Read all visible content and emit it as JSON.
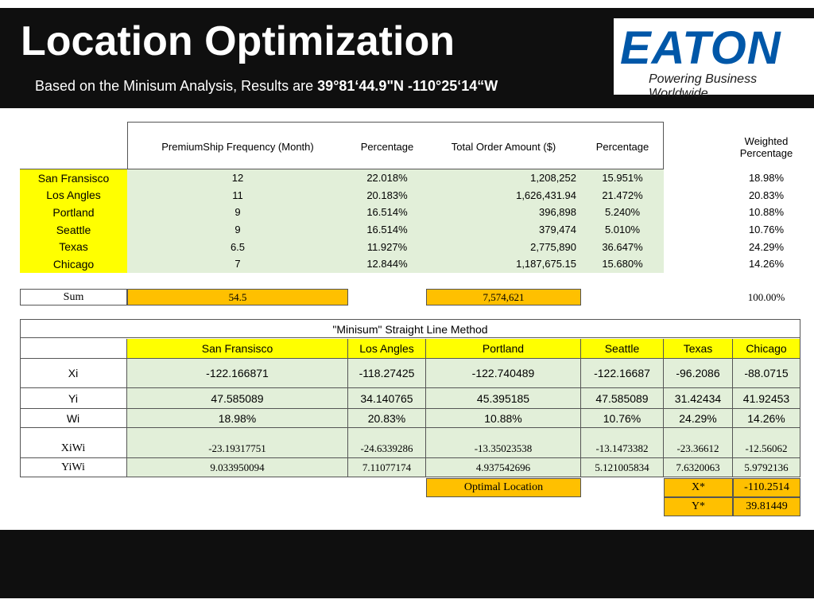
{
  "header": {
    "title": "Location Optimization",
    "subtitle_prefix": "Based on the Minisum Analysis, Results are ",
    "subtitle_coords": "39°81‘44.9\"N -110°25‘14“W"
  },
  "logo": {
    "wordmark": "EATON",
    "tagline": "Powering Business Worldwide"
  },
  "colors": {
    "highlight_yellow": "#ffff00",
    "highlight_orange": "#ffc000",
    "cell_green": "#e2efd9",
    "bar_black": "#0f0f0f",
    "brand_blue": "#0057a8"
  },
  "table1": {
    "headers": [
      "PremiumShip Frequency (Month)",
      "Percentage",
      "Total Order Amount ($)",
      "Percentage",
      "Weighted Percentage"
    ],
    "rows": [
      {
        "city": "San Fransisco",
        "freq": "12",
        "pct1": "22.018%",
        "amount": "1,208,252",
        "pct2": "15.951%",
        "weighted": "18.98%"
      },
      {
        "city": "Los Angles",
        "freq": "11",
        "pct1": "20.183%",
        "amount": "1,626,431.94",
        "pct2": "21.472%",
        "weighted": "20.83%"
      },
      {
        "city": "Portland",
        "freq": "9",
        "pct1": "16.514%",
        "amount": "396,898",
        "pct2": "5.240%",
        "weighted": "10.88%"
      },
      {
        "city": "Seattle",
        "freq": "9",
        "pct1": "16.514%",
        "amount": "379,474",
        "pct2": "5.010%",
        "weighted": "10.76%"
      },
      {
        "city": "Texas",
        "freq": "6.5",
        "pct1": "11.927%",
        "amount": "2,775,890",
        "pct2": "36.647%",
        "weighted": "24.29%"
      },
      {
        "city": "Chicago",
        "freq": "7",
        "pct1": "12.844%",
        "amount": "1,187,675.15",
        "pct2": "15.680%",
        "weighted": "14.26%"
      }
    ],
    "sum": {
      "label": "Sum",
      "freq": "54.5",
      "amount": "7,574,621",
      "weighted": "100.00%"
    }
  },
  "table2": {
    "title": "\"Minisum\" Straight Line Method",
    "cities": [
      "San Fransisco",
      "Los Angles",
      "Portland",
      "Seattle",
      "Texas",
      "Chicago"
    ],
    "rows": [
      {
        "label": "Xi",
        "values": [
          "-122.166871",
          "-118.27425",
          "-122.740489",
          "-122.16687",
          "-96.2086",
          "-88.0715"
        ]
      },
      {
        "label": "Yi",
        "values": [
          "47.585089",
          "34.140765",
          "45.395185",
          "47.585089",
          "31.42434",
          "41.92453"
        ]
      },
      {
        "label": "Wi",
        "values": [
          "18.98%",
          "20.83%",
          "10.88%",
          "10.76%",
          "24.29%",
          "14.26%"
        ]
      },
      {
        "label": "XiWi",
        "values": [
          "-23.19317751",
          "-24.6339286",
          "-13.35023538",
          "-13.1473382",
          "-23.36612",
          "-12.56062"
        ]
      },
      {
        "label": "YiWi",
        "values": [
          "9.033950094",
          "7.11077174",
          "4.937542696",
          "5.121005834",
          "7.6320063",
          "5.9792136"
        ]
      }
    ],
    "optimal": {
      "label": "Optimal Location",
      "x_label": "X*",
      "x_value": "-110.2514",
      "y_label": "Y*",
      "y_value": "39.81449"
    }
  }
}
